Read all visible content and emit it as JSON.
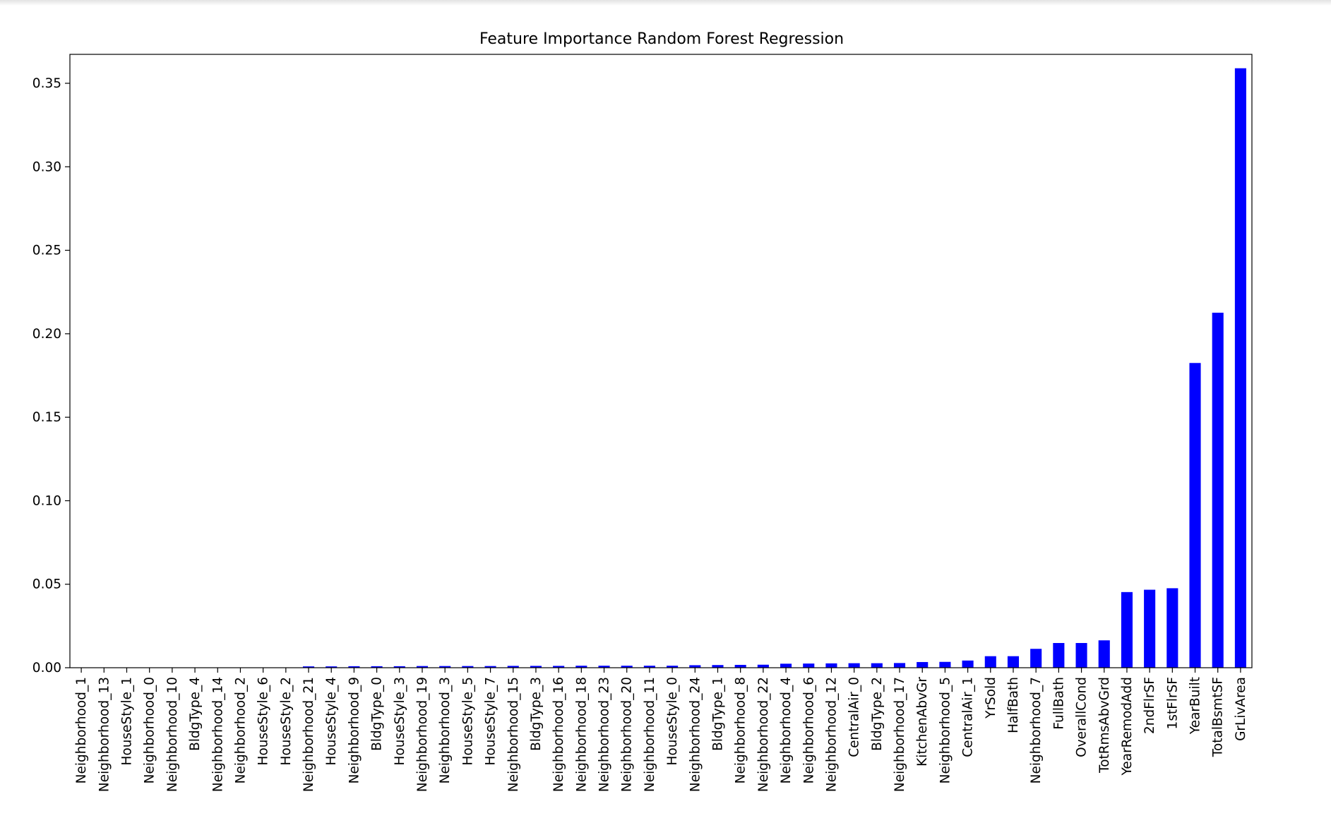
{
  "chart_data": {
    "type": "bar",
    "title": "Feature Importance Random Forest Regression",
    "xlabel": "",
    "ylabel": "",
    "ylim": [
      0,
      0.375
    ],
    "yticks": [
      "0.00",
      "0.05",
      "0.10",
      "0.15",
      "0.20",
      "0.25",
      "0.30",
      "0.35"
    ],
    "bar_color": "#0000ff",
    "grid": false,
    "categories": [
      "Neighborhood_1",
      "Neighborhood_13",
      "HouseStyle_1",
      "Neighborhood_0",
      "Neighborhood_10",
      "BldgType_4",
      "Neighborhood_14",
      "Neighborhood_2",
      "HouseStyle_6",
      "HouseStyle_2",
      "Neighborhood_21",
      "HouseStyle_4",
      "Neighborhood_9",
      "BldgType_0",
      "HouseStyle_3",
      "Neighborhood_19",
      "Neighborhood_3",
      "HouseStyle_5",
      "HouseStyle_7",
      "Neighborhood_15",
      "BldgType_3",
      "Neighborhood_16",
      "Neighborhood_18",
      "Neighborhood_23",
      "Neighborhood_20",
      "Neighborhood_11",
      "HouseStyle_0",
      "Neighborhood_24",
      "BldgType_1",
      "Neighborhood_8",
      "Neighborhood_22",
      "Neighborhood_4",
      "Neighborhood_6",
      "Neighborhood_12",
      "CentralAir_0",
      "BldgType_2",
      "Neighborhood_17",
      "KitchenAbvGr",
      "Neighborhood_5",
      "CentralAir_1",
      "YrSold",
      "HalfBath",
      "Neighborhood_7",
      "FullBath",
      "OverallCond",
      "TotRmsAbvGrd",
      "YearRemodAdd",
      "2ndFlrSF",
      "1stFlrSF",
      "YearBuilt",
      "TotalBsmtSF",
      "GrLivArea"
    ],
    "values": [
      0.0,
      0.0,
      0.0,
      0.0,
      0.0,
      0.0,
      0.0,
      0.0,
      0.0,
      0.0,
      0.0008,
      0.0008,
      0.0009,
      0.0009,
      0.0009,
      0.001,
      0.001,
      0.001,
      0.001,
      0.0011,
      0.0011,
      0.0011,
      0.0012,
      0.0012,
      0.0012,
      0.0012,
      0.0012,
      0.0015,
      0.0016,
      0.0017,
      0.0018,
      0.0024,
      0.0025,
      0.0026,
      0.0027,
      0.0027,
      0.0028,
      0.0034,
      0.0035,
      0.0043,
      0.0069,
      0.0069,
      0.0113,
      0.0148,
      0.0148,
      0.0164,
      0.0453,
      0.0467,
      0.0476,
      0.1825,
      0.2126,
      0.359
    ]
  }
}
